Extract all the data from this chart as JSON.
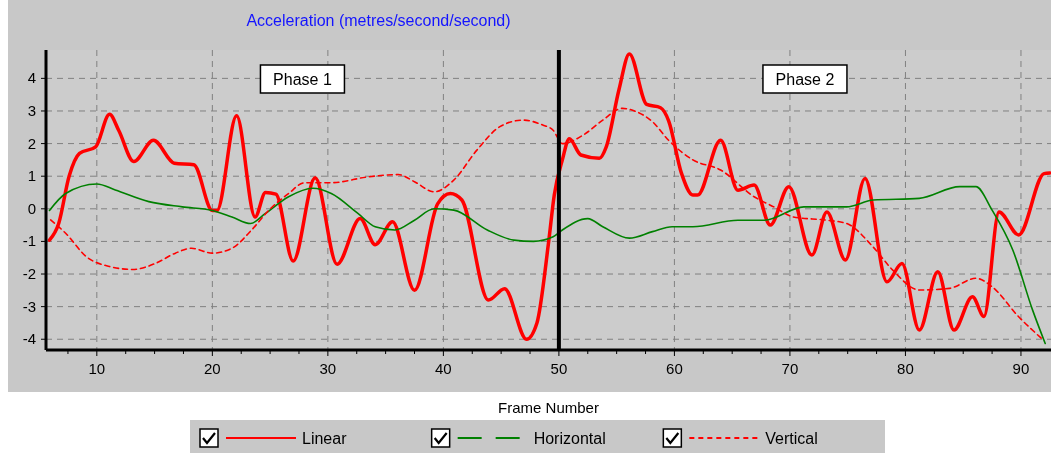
{
  "chart_data": {
    "type": "line",
    "title": "Acceleration (metres/second/second)",
    "xlabel": "Frame Number",
    "xlim": [
      5.6,
      92.6
    ],
    "ylim": [
      -4.33,
      4.87
    ],
    "xticks": [
      {
        "value": 7.5,
        "label": null
      },
      10,
      {
        "value": 12.5,
        "label": null
      },
      {
        "value": 15,
        "label": null
      },
      {
        "value": 17.5,
        "label": null
      },
      20,
      {
        "value": 22.5,
        "label": null
      },
      {
        "value": 25,
        "label": null
      },
      {
        "value": 27.5,
        "label": null
      },
      30,
      {
        "value": 32.5,
        "label": null
      },
      {
        "value": 35,
        "label": null
      },
      {
        "value": 37.5,
        "label": null
      },
      40,
      {
        "value": 42.5,
        "label": null
      },
      {
        "value": 45,
        "label": null
      },
      {
        "value": 47.5,
        "label": null
      },
      50,
      {
        "value": 52.5,
        "label": null
      },
      {
        "value": 55,
        "label": null
      },
      {
        "value": 57.5,
        "label": null
      },
      60,
      {
        "value": 62.5,
        "label": null
      },
      {
        "value": 65,
        "label": null
      },
      {
        "value": 67.5,
        "label": null
      },
      70,
      {
        "value": 72.5,
        "label": null
      },
      {
        "value": 75,
        "label": null
      },
      {
        "value": 77.5,
        "label": null
      },
      80,
      {
        "value": 82.5,
        "label": null
      },
      {
        "value": 85,
        "label": null
      },
      {
        "value": 87.5,
        "label": null
      },
      90
    ],
    "yticks": [
      -4,
      -3,
      -2,
      -1,
      0,
      1,
      2,
      3,
      4
    ],
    "grid": true,
    "legend": "bottom",
    "ref_lines": [
      {
        "axis": "x",
        "value": 50,
        "color": "#000000"
      }
    ],
    "annotations": [
      "Phase 1",
      "Phase 2"
    ],
    "series": [
      {
        "name": "Linear",
        "color": "#ff0000",
        "line_style": "solid",
        "x": [
          5.9,
          6.7,
          7.6,
          8.5,
          9.9,
          11.1,
          11.9,
          13.2,
          14.9,
          16.7,
          18.4,
          20.0,
          20.4,
          22.1,
          23.7,
          24.6,
          25.5,
          27.0,
          28.9,
          30.8,
          32.8,
          34.1,
          35.6,
          37.5,
          39.5,
          40.6,
          41.6,
          43.9,
          45.3,
          47.2,
          48.1,
          49.1,
          49.6,
          50.3,
          50.9,
          51.9,
          53.5,
          54.1,
          55.2,
          56.1,
          57.6,
          58.8,
          59.5,
          60.6,
          61.6,
          62.0,
          64.0,
          65.5,
          66.9,
          68.3,
          69.9,
          71.9,
          73.2,
          74.8,
          76.5,
          78.4,
          79.7,
          81.2,
          82.8,
          84.2,
          85.8,
          86.8,
          88.1,
          89.8,
          92.0,
          92.5
        ],
        "values": [
          -0.96,
          -0.45,
          1.0,
          1.7,
          1.9,
          2.9,
          2.4,
          1.45,
          2.1,
          1.4,
          1.35,
          -0.05,
          -0.05,
          2.85,
          -0.25,
          0.5,
          0.45,
          -1.6,
          0.95,
          -1.7,
          -0.3,
          -1.1,
          -0.4,
          -2.5,
          0.15,
          0.47,
          0.27,
          -2.8,
          -2.45,
          -4.0,
          -3.5,
          -1.05,
          0.42,
          1.5,
          2.15,
          1.65,
          1.55,
          1.9,
          3.65,
          4.75,
          3.2,
          3.1,
          2.7,
          1.1,
          0.42,
          0.42,
          2.1,
          0.57,
          0.73,
          -0.5,
          0.68,
          -1.42,
          -0.1,
          -1.57,
          0.93,
          -2.24,
          -1.68,
          -3.72,
          -1.93,
          -3.72,
          -2.7,
          -3.3,
          -0.1,
          -0.8,
          1.08,
          1.1
        ]
      },
      {
        "name": "Horizontal",
        "color": "#008000",
        "line_style": "solid",
        "x": [
          5.9,
          7.3,
          10.0,
          11.6,
          14.5,
          17.4,
          20.0,
          21.7,
          23.3,
          24.6,
          26.6,
          28.7,
          30.3,
          32.6,
          34.1,
          35.8,
          37.5,
          39.2,
          40.9,
          43.8,
          46.1,
          47.8,
          49.5,
          50.3,
          52.5,
          53.8,
          56.1,
          58.1,
          59.8,
          61.6,
          65.5,
          67.8,
          71.2,
          74.9,
          77.2,
          81.2,
          84.7,
          86.1,
          87.5,
          89.3,
          91.0,
          92.1
        ],
        "values": [
          -0.05,
          0.47,
          0.76,
          0.58,
          0.22,
          0.06,
          -0.05,
          -0.25,
          -0.45,
          -0.14,
          0.37,
          0.63,
          0.47,
          -0.14,
          -0.55,
          -0.65,
          -0.35,
          0.0,
          -0.04,
          -0.65,
          -0.96,
          -1.0,
          -0.86,
          -0.65,
          -0.3,
          -0.55,
          -0.9,
          -0.7,
          -0.55,
          -0.55,
          -0.35,
          -0.35,
          0.06,
          0.06,
          0.27,
          0.32,
          0.68,
          0.68,
          -0.04,
          -1.27,
          -3.1,
          -4.13
        ]
      },
      {
        "name": "Vertical",
        "color": "#ff0000",
        "line_style": "dashed",
        "x": [
          6.0,
          7.3,
          9.1,
          11.1,
          13.1,
          15.1,
          16.8,
          18.2,
          20.0,
          21.7,
          23.4,
          24.9,
          26.6,
          28.0,
          30.3,
          33.5,
          36.1,
          37.5,
          39.2,
          40.9,
          42.9,
          44.9,
          46.9,
          48.6,
          49.5,
          50.3,
          52.1,
          53.8,
          55.5,
          56.7,
          58.1,
          59.5,
          61.6,
          64.0,
          66.9,
          68.6,
          70.3,
          73.2,
          74.9,
          77.2,
          78.9,
          81.2,
          83.8,
          86.1,
          87.5,
          89.8,
          91.8
        ],
        "values": [
          -0.34,
          -0.75,
          -1.47,
          -1.77,
          -1.86,
          -1.67,
          -1.36,
          -1.21,
          -1.36,
          -1.21,
          -0.65,
          -0.04,
          0.47,
          0.8,
          0.8,
          0.98,
          1.05,
          0.83,
          0.52,
          0.88,
          1.8,
          2.52,
          2.72,
          2.57,
          2.41,
          2.0,
          2.26,
          2.72,
          3.08,
          2.98,
          2.67,
          2.1,
          1.5,
          1.19,
          0.37,
          0.06,
          -0.25,
          -0.35,
          -0.45,
          -1.17,
          -1.88,
          -2.49,
          -2.44,
          -2.13,
          -2.39,
          -3.31,
          -3.98
        ]
      }
    ]
  }
}
